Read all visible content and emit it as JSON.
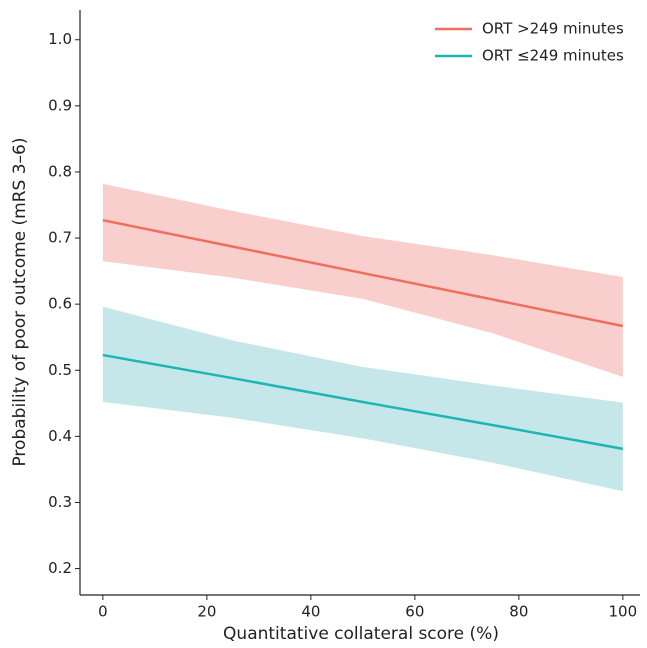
{
  "chart_data": {
    "type": "line",
    "x_label": "Quantitative collateral score (%)",
    "y_label": "Probability of poor outcome (mRS 3–6)",
    "x": [
      0,
      25,
      50,
      75,
      100
    ],
    "series": [
      {
        "name": "ORT >249 minutes",
        "color": "#ef6f5e",
        "band_color": "#f8cfcc",
        "values": [
          0.727,
          0.687,
          0.647,
          0.607,
          0.567
        ],
        "lower": [
          0.665,
          0.64,
          0.608,
          0.556,
          0.49
        ],
        "upper": [
          0.782,
          0.741,
          0.703,
          0.674,
          0.641
        ]
      },
      {
        "name": "ORT ≤249 minutes",
        "color": "#1fb5b5",
        "band_color": "#c6e7ea",
        "values": [
          0.523,
          0.488,
          0.452,
          0.417,
          0.381
        ],
        "lower": [
          0.452,
          0.428,
          0.397,
          0.36,
          0.317
        ],
        "upper": [
          0.596,
          0.545,
          0.505,
          0.477,
          0.451
        ]
      }
    ],
    "xlim": [
      -4.4,
      103.3
    ],
    "ylim": [
      0.16,
      1.045
    ],
    "xticks": [
      0,
      20,
      40,
      60,
      80,
      100
    ],
    "yticks": [
      0.2,
      0.3,
      0.4,
      0.5,
      0.6,
      0.7,
      0.8,
      0.9,
      {
        "value": 1,
        "label": "1.0"
      }
    ],
    "legend": "top-right"
  }
}
